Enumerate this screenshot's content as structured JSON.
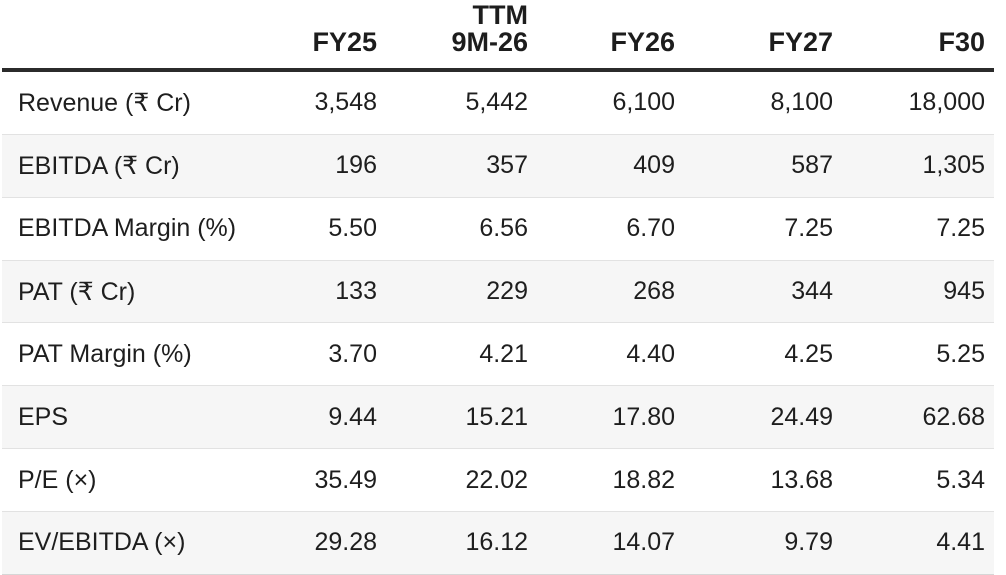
{
  "colors": {
    "background": "#ffffff",
    "stripe_row": "#f6f6f6",
    "header_rule": "#2b2b2b",
    "row_divider": "#e2e2e2",
    "bottom_rule": "#d6d6d6",
    "text": "#1e1e1e"
  },
  "table": {
    "header": {
      "label_column": "",
      "columns": [
        {
          "line1": "",
          "line2": "FY25"
        },
        {
          "line1": "TTM",
          "line2": "9M-26"
        },
        {
          "line1": "",
          "line2": "FY26"
        },
        {
          "line1": "",
          "line2": "FY27"
        },
        {
          "line1": "",
          "line2": "F30"
        }
      ]
    },
    "rows": [
      {
        "label": "Revenue (₹ Cr)",
        "values": [
          "3,548",
          "5,442",
          "6,100",
          "8,100",
          "18,000"
        ]
      },
      {
        "label": "EBITDA (₹ Cr)",
        "values": [
          "196",
          "357",
          "409",
          "587",
          "1,305"
        ]
      },
      {
        "label": "EBITDA Margin (%)",
        "values": [
          "5.50",
          "6.56",
          "6.70",
          "7.25",
          "7.25"
        ]
      },
      {
        "label": "PAT (₹ Cr)",
        "values": [
          "133",
          "229",
          "268",
          "344",
          "945"
        ]
      },
      {
        "label": "PAT Margin (%)",
        "values": [
          "3.70",
          "4.21",
          "4.40",
          "4.25",
          "5.25"
        ]
      },
      {
        "label": "EPS",
        "values": [
          "9.44",
          "15.21",
          "17.80",
          "24.49",
          "62.68"
        ]
      },
      {
        "label": "P/E (×)",
        "values": [
          "35.49",
          "22.02",
          "18.82",
          "13.68",
          "5.34"
        ]
      },
      {
        "label": "EV/EBITDA (×)",
        "values": [
          "29.28",
          "16.12",
          "14.07",
          "9.79",
          "4.41"
        ]
      }
    ]
  },
  "chart_data": {
    "type": "table",
    "columns": [
      "",
      "FY25",
      "TTM 9M-26",
      "FY26",
      "FY27",
      "F30"
    ],
    "rows": [
      [
        "Revenue (₹ Cr)",
        "3,548",
        "5,442",
        "6,100",
        "8,100",
        "18,000"
      ],
      [
        "EBITDA (₹ Cr)",
        "196",
        "357",
        "409",
        "587",
        "1,305"
      ],
      [
        "EBITDA Margin (%)",
        "5.50",
        "6.56",
        "6.70",
        "7.25",
        "7.25"
      ],
      [
        "PAT (₹ Cr)",
        "133",
        "229",
        "268",
        "344",
        "945"
      ],
      [
        "PAT Margin (%)",
        "3.70",
        "4.21",
        "4.40",
        "4.25",
        "5.25"
      ],
      [
        "EPS",
        "9.44",
        "15.21",
        "17.80",
        "24.49",
        "62.68"
      ],
      [
        "P/E (×)",
        "35.49",
        "22.02",
        "18.82",
        "13.68",
        "5.34"
      ],
      [
        "EV/EBITDA (×)",
        "29.28",
        "16.12",
        "14.07",
        "9.79",
        "4.41"
      ]
    ]
  }
}
